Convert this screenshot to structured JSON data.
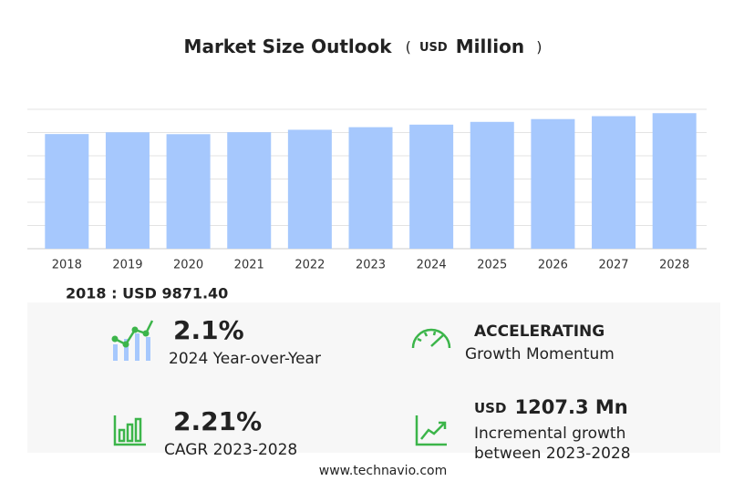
{
  "chart_data": {
    "type": "bar",
    "title": "Market Size Outlook",
    "unit_open": "(",
    "unit_currency": "USD",
    "unit_name": "Million",
    "unit_close": ")",
    "categories": [
      "2018",
      "2019",
      "2020",
      "2021",
      "2022",
      "2023",
      "2024",
      "2025",
      "2026",
      "2027",
      "2028"
    ],
    "values": [
      9871.4,
      10020,
      9860,
      10030,
      10240,
      10462,
      10682,
      10918,
      11160,
      11410,
      11669
    ],
    "color": "#a6c8fd",
    "ylim": [
      0,
      12000
    ],
    "yticks": [
      0,
      2000,
      4000,
      6000,
      8000,
      10000,
      12000
    ],
    "grid": true
  },
  "stats": {
    "base_label": "2018 : USD  9871.40",
    "yoy_value": "2.1%",
    "yoy_label": "2024 Year-over-Year",
    "momentum_value": "ACCELERATING",
    "momentum_label": "Growth Momentum",
    "cagr_value": "2.21%",
    "cagr_label": "CAGR 2023-2028",
    "incr_currency": "USD",
    "incr_value": "1207.3 Mn",
    "incr_label_1": "Incremental growth",
    "incr_label_2": "between 2023-2028"
  },
  "footer": "www.technavio.com"
}
